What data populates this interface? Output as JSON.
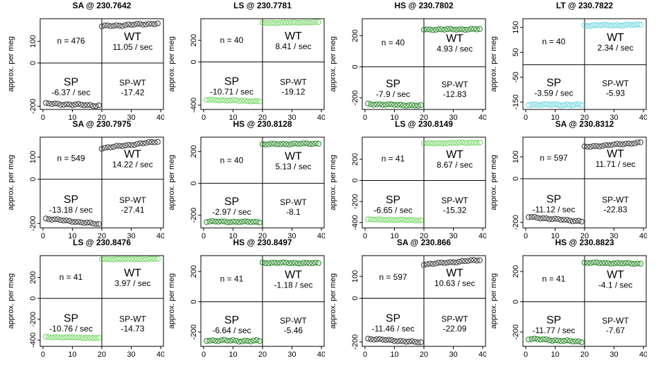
{
  "chart_data": [
    {
      "type": "scatter",
      "title": "SA @ 230.7642",
      "ylabel": "approx. per meg",
      "xlim": [
        0,
        40
      ],
      "ylim": [
        -215,
        205
      ],
      "xticks": [
        0,
        10,
        20,
        30,
        40
      ],
      "yticks": [
        -200,
        0,
        100
      ],
      "color": "#404040",
      "n_label": "n = 476",
      "wt_rate": "11.05 / sec",
      "sp_rate": "-6.37 / sec",
      "diff": "-17.42",
      "sp": {
        "start": -188,
        "end": -197,
        "noise": 4
      },
      "wt": {
        "start": 170,
        "end": 183,
        "noise": 4
      }
    },
    {
      "type": "scatter",
      "title": "LS @ 230.7781",
      "ylabel": "approx. per meg",
      "xlim": [
        0,
        40
      ],
      "ylim": [
        -440,
        400
      ],
      "xticks": [
        0,
        10,
        20,
        30,
        40
      ],
      "yticks": [
        -400,
        0,
        200
      ],
      "color": "#7ad86a",
      "n_label": "n = 40",
      "wt_rate": "8.41 / sec",
      "sp_rate": "-10.71 / sec",
      "diff": "-19.12",
      "sp": {
        "start": -350,
        "end": -365,
        "noise": 4
      },
      "wt": {
        "start": 360,
        "end": 367,
        "noise": 4
      }
    },
    {
      "type": "scatter",
      "title": "HS @ 230.7802",
      "ylabel": "approx. per meg",
      "xlim": [
        0,
        40
      ],
      "ylim": [
        -275,
        310
      ],
      "xticks": [
        0,
        10,
        20,
        30,
        40
      ],
      "yticks": [
        -200,
        0,
        200
      ],
      "color": "#2d8a2d",
      "n_label": "n = 40",
      "wt_rate": "4.93 / sec",
      "sp_rate": "-7.9 / sec",
      "diff": "-12.83",
      "sp": {
        "start": -240,
        "end": -250,
        "noise": 4
      },
      "wt": {
        "start": 240,
        "end": 242,
        "noise": 4
      }
    },
    {
      "type": "scatter",
      "title": "LT @ 230.7822",
      "ylabel": "approx. per meg",
      "xlim": [
        0,
        40
      ],
      "ylim": [
        -180,
        185
      ],
      "xticks": [
        0,
        10,
        20,
        30,
        40
      ],
      "yticks": [
        -150,
        -50,
        50,
        150
      ],
      "color": "#6fd8e0",
      "n_label": "n = 40",
      "wt_rate": "2.34 / sec",
      "sp_rate": "-3.59 / sec",
      "diff": "-5.93",
      "sp": {
        "start": -160,
        "end": -162,
        "noise": 3
      },
      "wt": {
        "start": 158,
        "end": 160,
        "noise": 3
      }
    },
    {
      "type": "scatter",
      "title": "SA @ 230.7975",
      "ylabel": "approx. per meg",
      "xlim": [
        0,
        40
      ],
      "ylim": [
        -220,
        190
      ],
      "xticks": [
        0,
        10,
        20,
        30,
        40
      ],
      "yticks": [
        -200,
        0,
        100
      ],
      "color": "#404040",
      "n_label": "n = 549",
      "wt_rate": "14.22 / sec",
      "sp_rate": "-13.18 / sec",
      "diff": "-27.41",
      "sp": {
        "start": -178,
        "end": -203,
        "noise": 3
      },
      "wt": {
        "start": 140,
        "end": 170,
        "noise": 3
      }
    },
    {
      "type": "scatter",
      "title": "HS @ 230.8128",
      "ylabel": "approx. per meg",
      "xlim": [
        0,
        40
      ],
      "ylim": [
        -280,
        290
      ],
      "xticks": [
        0,
        10,
        20,
        30,
        40
      ],
      "yticks": [
        -200,
        0,
        200
      ],
      "color": "#2d8a2d",
      "n_label": "n = 40",
      "wt_rate": "5.13 / sec",
      "sp_rate": "-2.97 / sec",
      "diff": "-8.1",
      "sp": {
        "start": -240,
        "end": -243,
        "noise": 4
      },
      "wt": {
        "start": 245,
        "end": 250,
        "noise": 4
      }
    },
    {
      "type": "scatter",
      "title": "LS @ 230.8149",
      "ylabel": "approx. per meg",
      "xlim": [
        0,
        40
      ],
      "ylim": [
        -450,
        410
      ],
      "xticks": [
        0,
        10,
        20,
        30,
        40
      ],
      "yticks": [
        -400,
        -200,
        0,
        200
      ],
      "color": "#7ad86a",
      "n_label": "n = 41",
      "wt_rate": "8.67 / sec",
      "sp_rate": "-6.65 / sec",
      "diff": "-15.32",
      "sp": {
        "start": -370,
        "end": -378,
        "noise": 4
      },
      "wt": {
        "start": 350,
        "end": 360,
        "noise": 4
      }
    },
    {
      "type": "scatter",
      "title": "SA @ 230.8312",
      "ylabel": "approx. per meg",
      "xlim": [
        0,
        40
      ],
      "ylim": [
        -225,
        190
      ],
      "xticks": [
        0,
        10,
        20,
        30,
        40
      ],
      "yticks": [
        -200,
        0,
        100
      ],
      "color": "#404040",
      "n_label": "n = 597",
      "wt_rate": "11.71 / sec",
      "sp_rate": "-11.12 / sec",
      "diff": "-22.83",
      "sp": {
        "start": -175,
        "end": -195,
        "noise": 3
      },
      "wt": {
        "start": 145,
        "end": 165,
        "noise": 3
      }
    },
    {
      "type": "scatter",
      "title": "LS @ 230.8476",
      "ylabel": "approx. per meg",
      "xlim": [
        0,
        40
      ],
      "ylim": [
        -460,
        410
      ],
      "xticks": [
        0,
        10,
        20,
        30,
        40
      ],
      "yticks": [
        -400,
        -200,
        0,
        200
      ],
      "color": "#7ad86a",
      "n_label": "n = 41",
      "wt_rate": "3.97 / sec",
      "sp_rate": "-10.76 / sec",
      "diff": "-14.73",
      "sp": {
        "start": -370,
        "end": -380,
        "noise": 3
      },
      "wt": {
        "start": 375,
        "end": 378,
        "noise": 3
      }
    },
    {
      "type": "scatter",
      "title": "HS @ 230.8497",
      "ylabel": "approx. per meg",
      "xlim": [
        0,
        40
      ],
      "ylim": [
        -295,
        305
      ],
      "xticks": [
        0,
        10,
        20,
        30,
        40
      ],
      "yticks": [
        -200,
        0,
        200
      ],
      "color": "#2d8a2d",
      "n_label": "n = 41",
      "wt_rate": "-1.18 / sec",
      "sp_rate": "-6.64 / sec",
      "diff": "-5.46",
      "sp": {
        "start": -255,
        "end": -260,
        "noise": 6
      },
      "wt": {
        "start": 258,
        "end": 255,
        "noise": 4
      }
    },
    {
      "type": "scatter",
      "title": "SA @ 230.866",
      "ylabel": "approx. per meg",
      "xlim": [
        0,
        40
      ],
      "ylim": [
        -220,
        195
      ],
      "xticks": [
        0,
        10,
        20,
        30,
        40
      ],
      "yticks": [
        -200,
        0,
        100
      ],
      "color": "#404040",
      "n_label": "n = 597",
      "wt_rate": "10.63 / sec",
      "sp_rate": "-11.46 / sec",
      "diff": "-22.09",
      "sp": {
        "start": -185,
        "end": -202,
        "noise": 3
      },
      "wt": {
        "start": 155,
        "end": 175,
        "noise": 3
      }
    },
    {
      "type": "scatter",
      "title": "HS @ 230.8823",
      "ylabel": "approx. per meg",
      "xlim": [
        0,
        40
      ],
      "ylim": [
        -295,
        305
      ],
      "xticks": [
        0,
        10,
        20,
        30,
        40
      ],
      "yticks": [
        -200,
        0,
        200
      ],
      "color": "#2d8a2d",
      "n_label": "n = 41",
      "wt_rate": "-4.1 / sec",
      "sp_rate": "-11.77 / sec",
      "diff": "-7.67",
      "sp": {
        "start": -245,
        "end": -265,
        "noise": 5
      },
      "wt": {
        "start": 258,
        "end": 252,
        "noise": 4
      }
    }
  ],
  "labels": {
    "sp": "SP",
    "wt": "WT",
    "diff": "SP-WT"
  }
}
